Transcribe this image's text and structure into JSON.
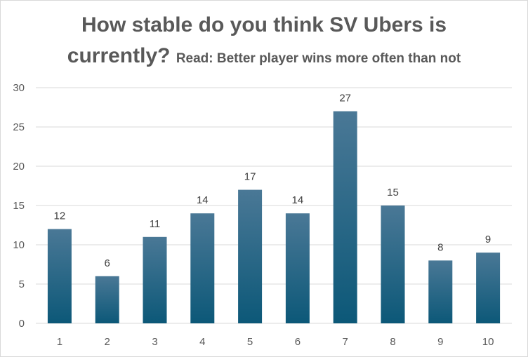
{
  "chart_data": {
    "type": "bar",
    "title": "How stable do you think SV Ubers is",
    "title_line2": "currently?",
    "subtitle": "Read: Better player wins more often than not",
    "categories": [
      "1",
      "2",
      "3",
      "4",
      "5",
      "6",
      "7",
      "8",
      "9",
      "10"
    ],
    "values": [
      12,
      6,
      11,
      14,
      17,
      14,
      27,
      15,
      8,
      9
    ],
    "ylim": [
      0,
      30
    ],
    "yticks": [
      0,
      5,
      10,
      15,
      20,
      25,
      30
    ],
    "xlabel": "",
    "ylabel": "",
    "grid": true,
    "legend": "none",
    "data_labels": true,
    "colors": {
      "bar_top": "#4a7896",
      "bar_bottom": "#0c5878",
      "grid": "#d9d9d9",
      "text": "#595959"
    }
  }
}
